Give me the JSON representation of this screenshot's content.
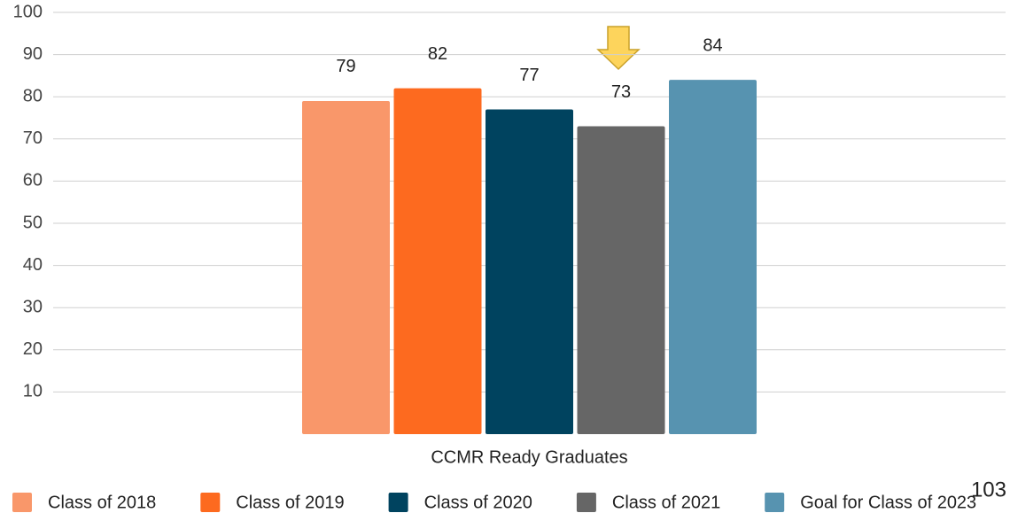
{
  "chart_data": {
    "type": "bar",
    "categories": [
      "CCMR Ready Graduates"
    ],
    "series": [
      {
        "name": "Class of 2018",
        "color": "#f9976a",
        "values": [
          79
        ]
      },
      {
        "name": "Class of 2019",
        "color": "#fd6a1f",
        "values": [
          82
        ]
      },
      {
        "name": "Class of 2020",
        "color": "#00435f",
        "values": [
          77
        ]
      },
      {
        "name": "Class of 2021",
        "color": "#666666",
        "values": [
          73
        ]
      },
      {
        "name": "Goal for Class of 2023",
        "color": "#5793b0",
        "values": [
          84
        ]
      }
    ],
    "ylim": [
      0,
      100
    ],
    "yticks": [
      10,
      20,
      30,
      40,
      50,
      60,
      70,
      80,
      90,
      100
    ],
    "grid": true,
    "legend": "bottom"
  },
  "slide_number": "103"
}
